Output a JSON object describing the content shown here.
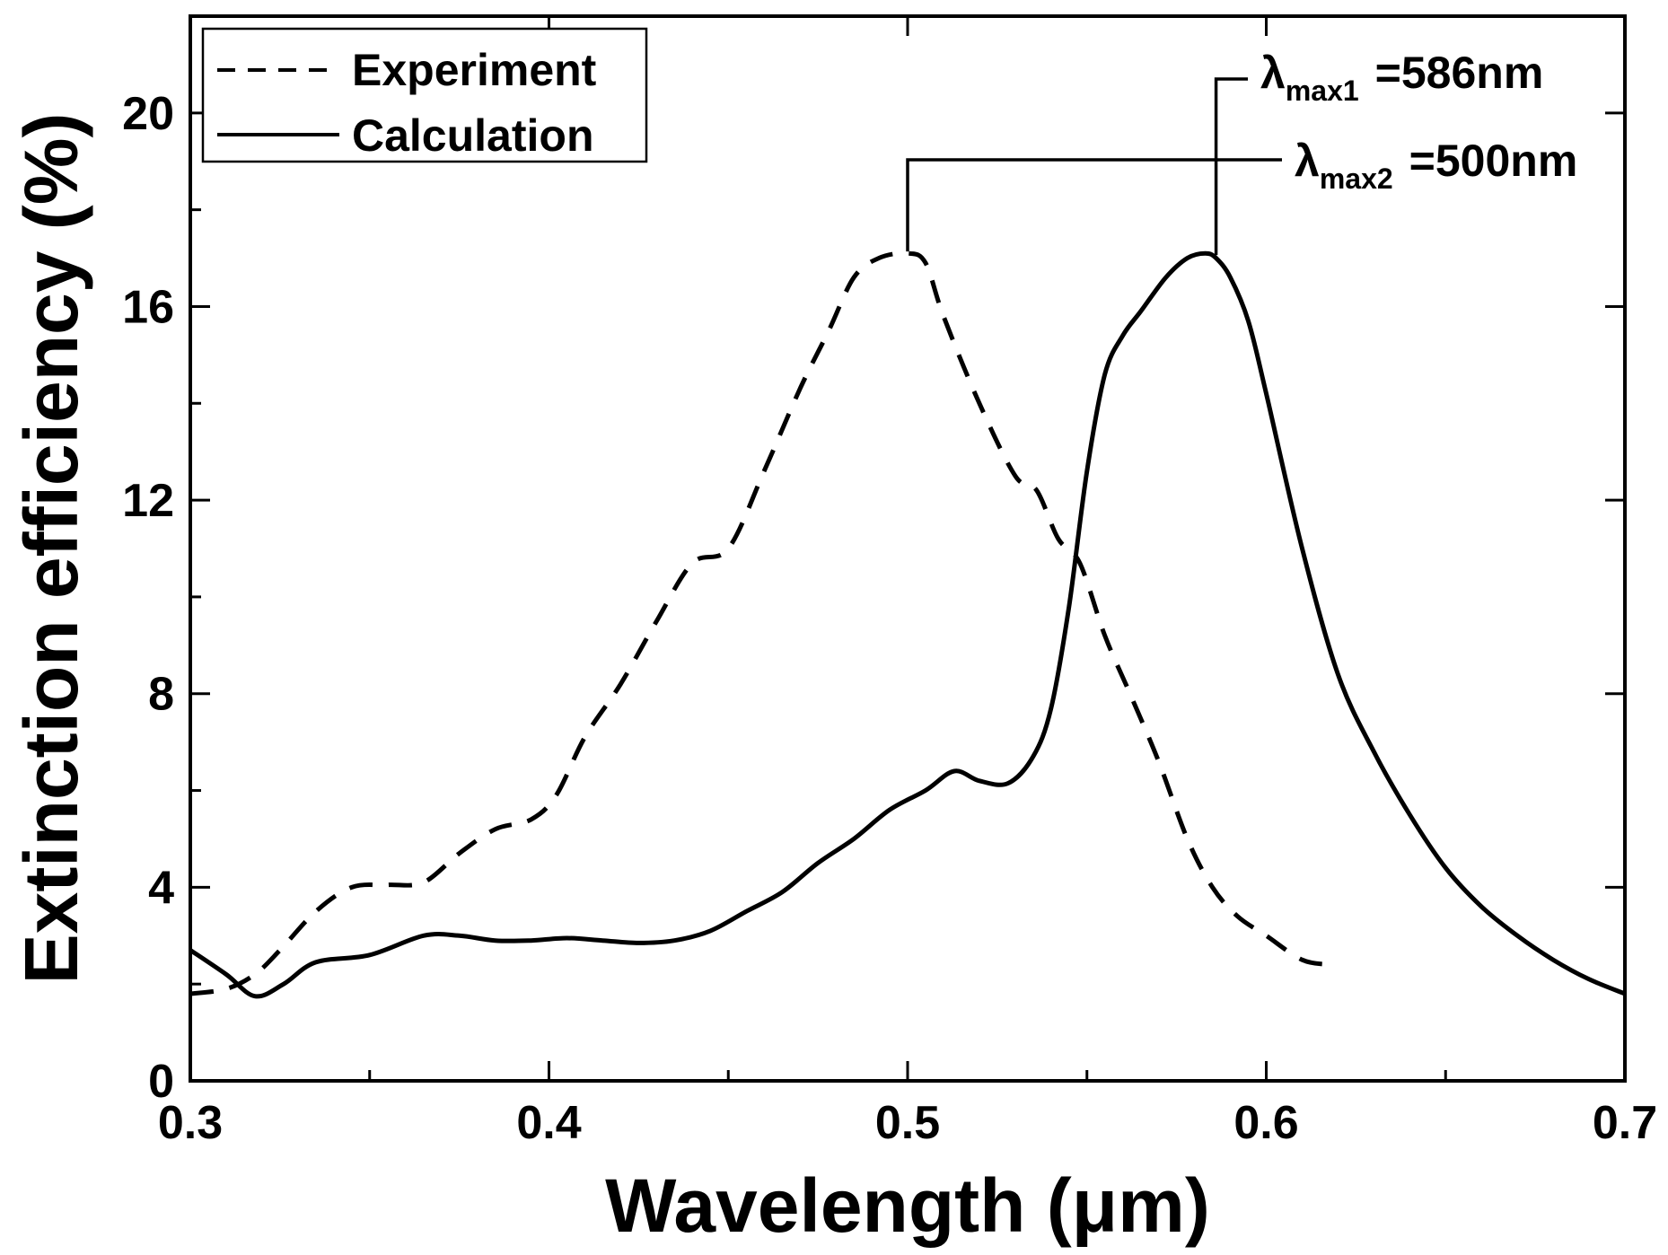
{
  "chart_data": {
    "type": "line",
    "title": "",
    "xlabel": "Wavelength (μm)",
    "ylabel": "Extinction efficiency (%)",
    "xlim": [
      0.3,
      0.7
    ],
    "ylim": [
      0,
      22
    ],
    "xticks": [
      0.3,
      0.4,
      0.5,
      0.6,
      0.7
    ],
    "xtick_labels": [
      "0.3",
      "0.4",
      "0.5",
      "0.6",
      "0.7"
    ],
    "yticks": [
      0,
      4,
      8,
      12,
      16,
      20
    ],
    "ytick_labels": [
      "0",
      "4",
      "8",
      "12",
      "16",
      "20"
    ],
    "grid": false,
    "legend_position": "top-left",
    "series": [
      {
        "name": "Experiment",
        "style": "dashed",
        "x": [
          0.3,
          0.31,
          0.318,
          0.325,
          0.335,
          0.345,
          0.355,
          0.365,
          0.375,
          0.385,
          0.395,
          0.402,
          0.41,
          0.42,
          0.43,
          0.44,
          0.45,
          0.46,
          0.47,
          0.478,
          0.485,
          0.492,
          0.5,
          0.505,
          0.51,
          0.52,
          0.53,
          0.536,
          0.542,
          0.548,
          0.555,
          0.562,
          0.57,
          0.578,
          0.585,
          0.592,
          0.6,
          0.61,
          0.618
        ],
        "values": [
          1.8,
          1.9,
          2.2,
          2.7,
          3.5,
          4.0,
          4.05,
          4.1,
          4.7,
          5.2,
          5.4,
          5.9,
          7.1,
          8.2,
          9.5,
          10.7,
          11.0,
          12.6,
          14.3,
          15.5,
          16.6,
          17.0,
          17.1,
          16.9,
          15.8,
          14.0,
          12.5,
          12.2,
          11.2,
          10.7,
          9.2,
          8.0,
          6.6,
          5.0,
          4.0,
          3.4,
          3.0,
          2.5,
          2.4
        ]
      },
      {
        "name": "Calculation",
        "style": "solid",
        "x": [
          0.3,
          0.31,
          0.318,
          0.326,
          0.335,
          0.35,
          0.365,
          0.375,
          0.385,
          0.395,
          0.405,
          0.415,
          0.425,
          0.435,
          0.445,
          0.455,
          0.465,
          0.475,
          0.485,
          0.495,
          0.505,
          0.513,
          0.52,
          0.528,
          0.535,
          0.54,
          0.545,
          0.55,
          0.555,
          0.56,
          0.565,
          0.572,
          0.578,
          0.583,
          0.586,
          0.59,
          0.595,
          0.6,
          0.61,
          0.62,
          0.63,
          0.64,
          0.65,
          0.66,
          0.67,
          0.68,
          0.69,
          0.7
        ],
        "values": [
          2.7,
          2.2,
          1.75,
          2.0,
          2.45,
          2.6,
          3.0,
          3.0,
          2.9,
          2.9,
          2.95,
          2.9,
          2.85,
          2.9,
          3.1,
          3.5,
          3.9,
          4.5,
          5.0,
          5.6,
          6.0,
          6.4,
          6.2,
          6.15,
          6.7,
          7.7,
          9.8,
          12.6,
          14.6,
          15.4,
          15.9,
          16.6,
          17.0,
          17.1,
          17.0,
          16.6,
          15.7,
          14.2,
          11.0,
          8.4,
          6.8,
          5.5,
          4.4,
          3.6,
          3.0,
          2.5,
          2.1,
          1.8
        ]
      }
    ],
    "annotations": [
      {
        "symbol": "λ",
        "subscript": "max1",
        "text": "=586nm",
        "x": 0.586,
        "y": 17.1
      },
      {
        "symbol": "λ",
        "subscript": "max2",
        "text": "=500nm",
        "x": 0.5,
        "y": 17.1
      }
    ]
  }
}
